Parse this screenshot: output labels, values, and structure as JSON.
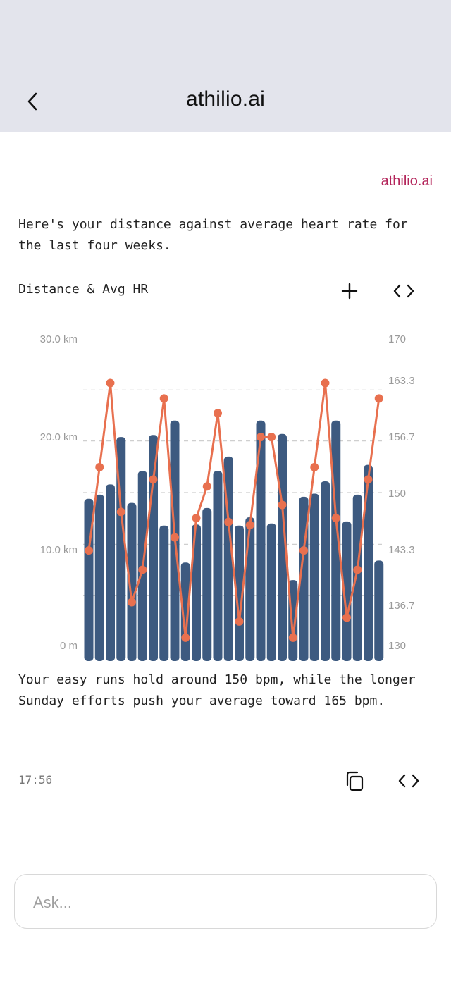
{
  "header": {
    "title": "athilio.ai",
    "back_icon": "chevron-left-icon"
  },
  "message": {
    "sender": "athilio.ai",
    "intro": "Here's your distance against average heart rate for the last four weeks.",
    "outro": "Your easy runs hold around 150 bpm, while the longer Sunday efforts push your average toward 165 bpm.",
    "timestamp": "17:56",
    "actions": {
      "copy_icon": "copy-icon",
      "code_icon": "code-icon"
    }
  },
  "chart_header": {
    "title": "Distance & Avg HR",
    "add_icon": "plus-icon",
    "code_icon": "code-icon"
  },
  "colors": {
    "bar": "#3d5a80",
    "line": "#e8704f",
    "accent": "#b3245a",
    "header_bg": "#e3e4ec"
  },
  "chart_data": {
    "type": "bar",
    "grid": "dashed-horizontal",
    "left_axis": {
      "ticks": [
        "30.0 km",
        "20.0 km",
        "10.0 km",
        "0 m"
      ],
      "range": [
        0,
        30
      ]
    },
    "right_axis": {
      "ticks": [
        "170",
        "163.3",
        "156.7",
        "150",
        "143.3",
        "136.7",
        "130"
      ],
      "range": [
        130,
        170
      ]
    },
    "series": [
      {
        "kind": "bar",
        "axis": "left",
        "values": [
          14.4,
          14.8,
          15.8,
          20.4,
          14.0,
          17.1,
          20.6,
          11.8,
          22.0,
          8.2,
          11.9,
          13.5,
          17.1,
          18.5,
          11.8,
          12.6,
          22.0,
          12.0,
          20.7,
          6.5,
          14.6,
          14.9,
          16.1,
          22.0,
          12.2,
          14.8,
          17.7,
          8.4
        ]
      },
      {
        "kind": "line",
        "axis": "right",
        "values": [
          142.5,
          153.3,
          164.2,
          147.5,
          135.8,
          140.0,
          151.7,
          162.2,
          144.2,
          131.2,
          146.7,
          150.8,
          160.3,
          146.2,
          133.3,
          145.8,
          157.2,
          157.2,
          148.4,
          131.2,
          142.5,
          153.3,
          164.2,
          146.7,
          133.8,
          140.0,
          151.7,
          162.2
        ]
      }
    ]
  },
  "composer": {
    "placeholder": "Ask..."
  }
}
